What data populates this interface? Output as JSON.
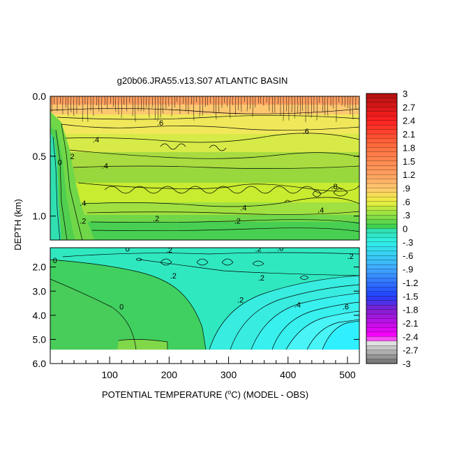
{
  "chart_data": {
    "type": "heatmap",
    "title": "g20b06.JRA55.v13.S07 ATLANTIC BASIN",
    "xlabel": "POTENTIAL TEMPERATURE (°C) (MODEL - OBS)",
    "xlabel_parts": {
      "before": "POTENTIAL TEMPERATURE (",
      "sup": "o",
      "after": "C) (MODEL - OBS)"
    },
    "ylabel": "DEPTH (km)",
    "x_range": [
      0,
      520
    ],
    "x_ticks": [
      "100",
      "200",
      "300",
      "400",
      "500"
    ],
    "x_tick_values": [
      100,
      200,
      300,
      400,
      500
    ],
    "panels": [
      {
        "name": "upper",
        "depth_range_km": [
          0.0,
          1.2
        ],
        "y_ticks": [
          "0.0",
          "0.5",
          "1.0"
        ],
        "y_tick_values": [
          0.0,
          0.5,
          1.0
        ],
        "contour_labels": [
          {
            "text": "0",
            "x": 16,
            "y": 0.55
          },
          {
            "text": "2",
            "x": 37,
            "y": 0.5
          },
          {
            "text": ".6",
            "x": 185,
            "y": 0.22
          },
          {
            "text": ".6",
            "x": 430,
            "y": 0.29
          },
          {
            "text": ".4",
            "x": 77,
            "y": 0.36
          },
          {
            "text": ".4",
            "x": 92,
            "y": 0.58
          },
          {
            "text": ".8",
            "x": 478,
            "y": 0.75
          },
          {
            "text": ".4",
            "x": 55,
            "y": 0.89
          },
          {
            "text": ".4",
            "x": 325,
            "y": 0.93
          },
          {
            "text": ".4",
            "x": 455,
            "y": 0.95
          },
          {
            "text": ".2",
            "x": 55,
            "y": 1.04
          },
          {
            "text": ".2",
            "x": 178,
            "y": 1.02
          },
          {
            "text": ".2",
            "x": 315,
            "y": 1.04
          }
        ]
      },
      {
        "name": "lower",
        "depth_range_km": [
          1.2,
          6.0
        ],
        "data_bottom_km": 5.35,
        "y_ticks": [
          "2.0",
          "3.0",
          "4.0",
          "5.0",
          "6.0"
        ],
        "y_tick_values": [
          2.0,
          3.0,
          4.0,
          5.0,
          6.0
        ],
        "contour_labels": [
          {
            "text": "0",
            "x": 130,
            "y": 1.25
          },
          {
            "text": ".2",
            "x": 200,
            "y": 1.28
          },
          {
            "text": ".2",
            "x": 350,
            "y": 1.25
          },
          {
            "text": ".0",
            "x": 387,
            "y": 1.22
          },
          {
            "text": ".2",
            "x": 505,
            "y": 1.55
          },
          {
            "text": "0",
            "x": 8,
            "y": 1.72
          },
          {
            "text": ".2",
            "x": 207,
            "y": 2.35
          },
          {
            "text": ".2",
            "x": 355,
            "y": 2.45
          },
          {
            "text": "0",
            "x": 120,
            "y": 3.65
          },
          {
            "text": ".2",
            "x": 320,
            "y": 3.35
          },
          {
            "text": ".4",
            "x": 416,
            "y": 3.55
          },
          {
            "text": ".6",
            "x": 497,
            "y": 3.65
          }
        ]
      }
    ],
    "colorbar": {
      "min": -3,
      "max": 3,
      "step": 0.1,
      "labels": [
        "3",
        "2.7",
        "2.4",
        "2.1",
        "1.8",
        "1.5",
        "1.2",
        ".9",
        ".6",
        ".3",
        "0",
        "-.3",
        "-.6",
        "-.9",
        "-1.2",
        "-1.5",
        "-1.8",
        "-2.1",
        "-2.4",
        "-2.7",
        "-3"
      ],
      "label_values": [
        3,
        2.7,
        2.4,
        2.1,
        1.8,
        1.5,
        1.2,
        0.9,
        0.6,
        0.3,
        0,
        -0.3,
        -0.6,
        -0.9,
        -1.2,
        -1.5,
        -1.8,
        -2.1,
        -2.4,
        -2.7,
        -3
      ],
      "color_stops": [
        {
          "v": 3.0,
          "c": "#b01010"
        },
        {
          "v": 2.4,
          "c": "#ff2020"
        },
        {
          "v": 1.8,
          "c": "#ff7040"
        },
        {
          "v": 1.2,
          "c": "#ffa060"
        },
        {
          "v": 0.9,
          "c": "#ffc870"
        },
        {
          "v": 0.6,
          "c": "#f0f040"
        },
        {
          "v": 0.3,
          "c": "#90e040"
        },
        {
          "v": 0.05,
          "c": "#40d050"
        },
        {
          "v": -0.05,
          "c": "#30e0b0"
        },
        {
          "v": -0.3,
          "c": "#30f0e8"
        },
        {
          "v": -0.9,
          "c": "#40a8ff"
        },
        {
          "v": -1.5,
          "c": "#2040ff"
        },
        {
          "v": -1.8,
          "c": "#8020d0"
        },
        {
          "v": -2.4,
          "c": "#ff00ff"
        },
        {
          "v": -2.55,
          "c": "#e0e0e0"
        },
        {
          "v": -3.0,
          "c": "#707070"
        }
      ]
    }
  }
}
